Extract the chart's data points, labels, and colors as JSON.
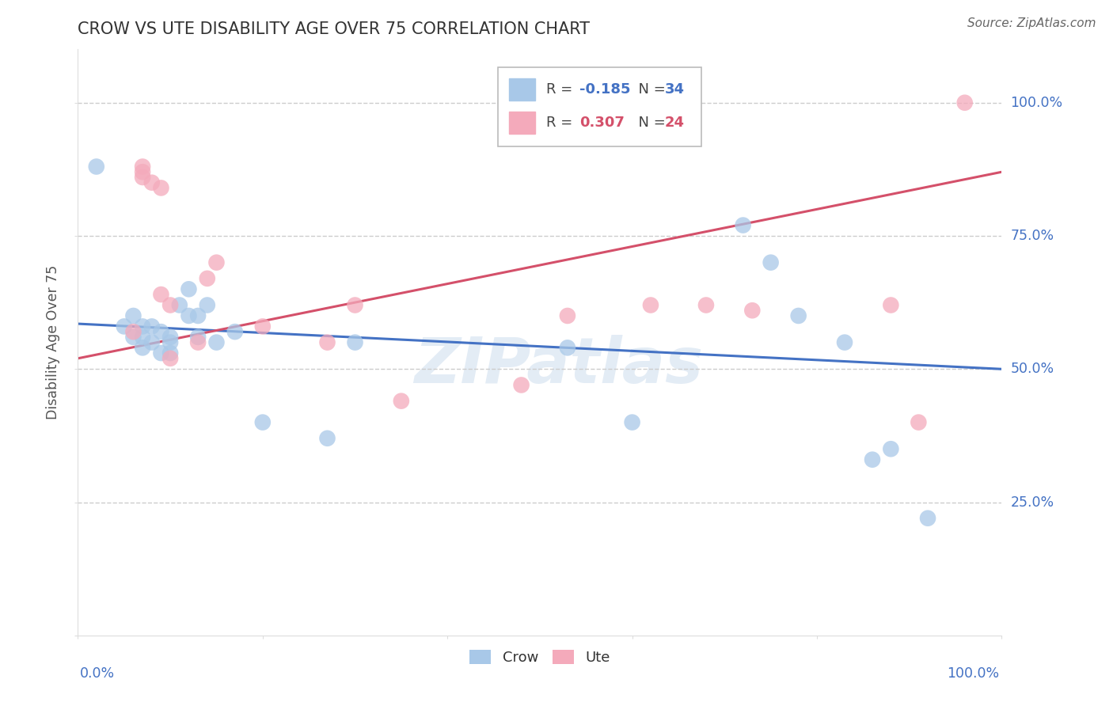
{
  "title": "CROW VS UTE DISABILITY AGE OVER 75 CORRELATION CHART",
  "source": "Source: ZipAtlas.com",
  "ylabel": "Disability Age Over 75",
  "xlim": [
    0.0,
    1.0
  ],
  "ylim": [
    0.0,
    1.1
  ],
  "crow_color": "#A8C8E8",
  "ute_color": "#F4AABB",
  "crow_line_color": "#4472C4",
  "ute_line_color": "#D4506A",
  "legend_crow_r": "-0.185",
  "legend_crow_n": "34",
  "legend_ute_r": "0.307",
  "legend_ute_n": "24",
  "crow_x": [
    0.02,
    0.05,
    0.06,
    0.06,
    0.07,
    0.07,
    0.07,
    0.08,
    0.08,
    0.09,
    0.09,
    0.1,
    0.1,
    0.1,
    0.11,
    0.12,
    0.12,
    0.13,
    0.13,
    0.14,
    0.15,
    0.17,
    0.2,
    0.27,
    0.3,
    0.53,
    0.6,
    0.72,
    0.75,
    0.78,
    0.83,
    0.86,
    0.88,
    0.92
  ],
  "crow_y": [
    0.88,
    0.58,
    0.6,
    0.56,
    0.58,
    0.56,
    0.54,
    0.58,
    0.55,
    0.57,
    0.53,
    0.56,
    0.55,
    0.53,
    0.62,
    0.65,
    0.6,
    0.6,
    0.56,
    0.62,
    0.55,
    0.57,
    0.4,
    0.37,
    0.55,
    0.54,
    0.4,
    0.77,
    0.7,
    0.6,
    0.55,
    0.33,
    0.35,
    0.22
  ],
  "ute_x": [
    0.06,
    0.07,
    0.07,
    0.07,
    0.08,
    0.09,
    0.09,
    0.1,
    0.1,
    0.13,
    0.14,
    0.15,
    0.2,
    0.27,
    0.3,
    0.35,
    0.48,
    0.53,
    0.62,
    0.68,
    0.73,
    0.88,
    0.91,
    0.96
  ],
  "ute_y": [
    0.57,
    0.88,
    0.87,
    0.86,
    0.85,
    0.84,
    0.64,
    0.52,
    0.62,
    0.55,
    0.67,
    0.7,
    0.58,
    0.55,
    0.62,
    0.44,
    0.47,
    0.6,
    0.62,
    0.62,
    0.61,
    0.62,
    0.4,
    1.0
  ],
  "watermark": "ZIPatlas",
  "background_color": "#FFFFFF",
  "grid_color": "#CCCCCC",
  "crow_line_intercept": 0.585,
  "crow_line_slope": -0.085,
  "ute_line_intercept": 0.52,
  "ute_line_slope": 0.35
}
